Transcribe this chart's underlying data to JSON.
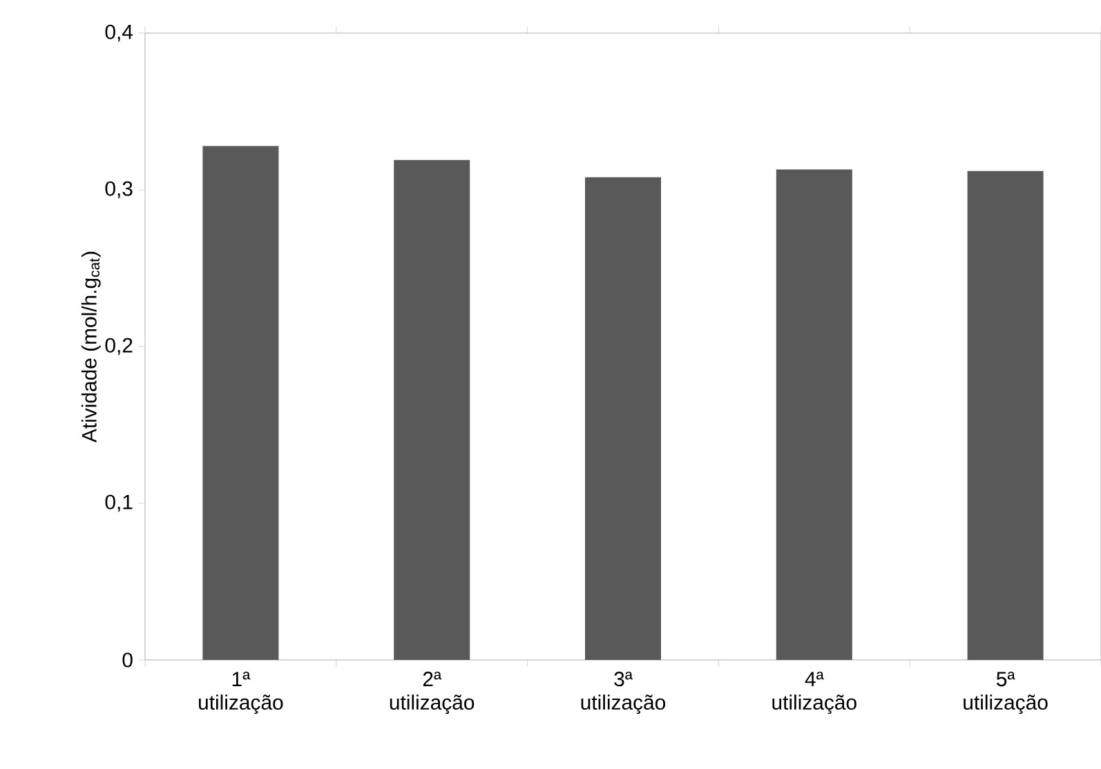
{
  "chart_data": {
    "type": "bar",
    "ylabel": "Atividade (mol/h.g$_{cat}$)",
    "categories": [
      "1ª utilização",
      "2ª utilização",
      "3ª utilização",
      "4ª utilização",
      "5ª utilização"
    ],
    "values": [
      0.328,
      0.319,
      0.308,
      0.313,
      0.312
    ],
    "color": "#595959",
    "ylim": [
      0,
      0.4
    ],
    "yticks": [
      {
        "value": 0,
        "label": "0"
      },
      {
        "value": 0.1,
        "label": "0,1"
      },
      {
        "value": 0.2,
        "label": "0,2"
      },
      {
        "value": 0.3,
        "label": "0,3"
      },
      {
        "value": 0.4,
        "label": "0,4"
      }
    ],
    "grid": false
  }
}
